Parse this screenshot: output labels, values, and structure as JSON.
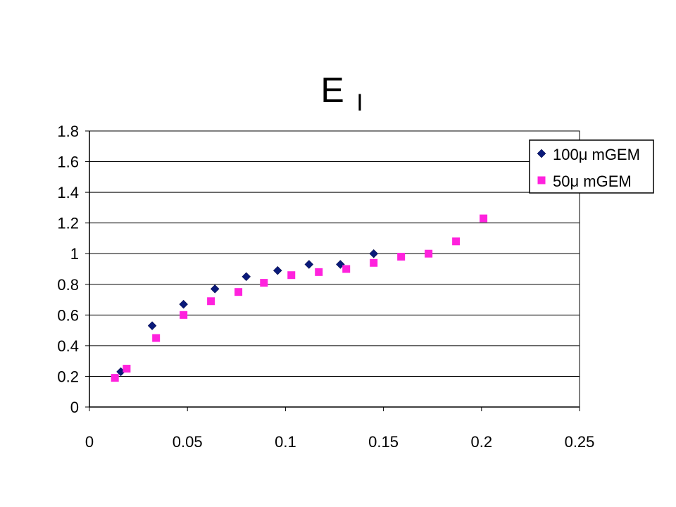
{
  "chart_data": {
    "type": "scatter",
    "title": "E",
    "title_subscript": "I",
    "xlim": [
      0,
      0.25
    ],
    "ylim": [
      0,
      1.8
    ],
    "x_ticks": [
      0,
      0.05,
      0.1,
      0.15,
      0.2,
      0.25
    ],
    "x_tick_labels": [
      "0",
      "0.05",
      "0.1",
      "0.15",
      "0.2",
      "0.25"
    ],
    "y_ticks": [
      0,
      0.2,
      0.4,
      0.6,
      0.8,
      1,
      1.2,
      1.4,
      1.6,
      1.8
    ],
    "y_tick_labels": [
      "0",
      "0.2",
      "0.4",
      "0.6",
      "0.8",
      "1",
      "1.2",
      "1.4",
      "1.6",
      "1.8"
    ],
    "grid": "horizontal",
    "legend_position": "top-right",
    "series": [
      {
        "name": "100μ mGEM",
        "marker": "diamond",
        "color": "#0a1a7a",
        "points": [
          [
            0.016,
            0.23
          ],
          [
            0.032,
            0.53
          ],
          [
            0.048,
            0.67
          ],
          [
            0.064,
            0.77
          ],
          [
            0.08,
            0.85
          ],
          [
            0.096,
            0.89
          ],
          [
            0.112,
            0.93
          ],
          [
            0.128,
            0.93
          ],
          [
            0.145,
            1.0
          ]
        ]
      },
      {
        "name": "50μ mGEM",
        "marker": "square",
        "color": "#ff22dd",
        "points": [
          [
            0.013,
            0.19
          ],
          [
            0.019,
            0.25
          ],
          [
            0.034,
            0.45
          ],
          [
            0.048,
            0.6
          ],
          [
            0.062,
            0.69
          ],
          [
            0.076,
            0.75
          ],
          [
            0.089,
            0.81
          ],
          [
            0.103,
            0.86
          ],
          [
            0.117,
            0.88
          ],
          [
            0.131,
            0.9
          ],
          [
            0.145,
            0.94
          ],
          [
            0.159,
            0.98
          ],
          [
            0.173,
            1.0
          ],
          [
            0.187,
            1.08
          ],
          [
            0.201,
            1.23
          ]
        ]
      }
    ]
  }
}
